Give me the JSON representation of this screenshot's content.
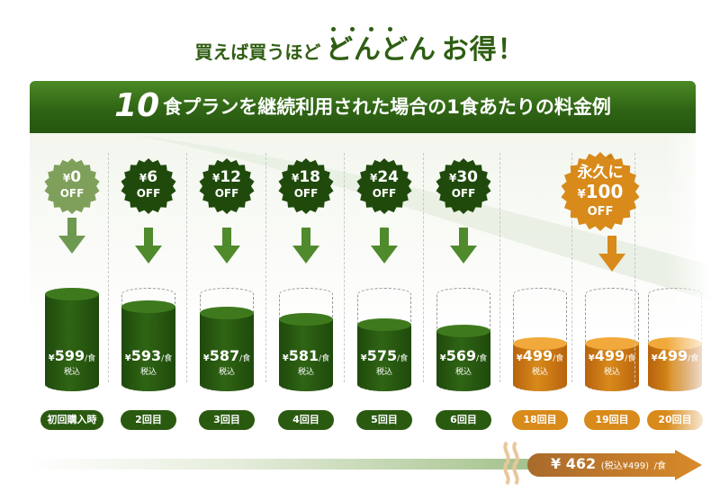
{
  "headline": {
    "part1": "買えば買うほど",
    "part2": "どんどん",
    "part3": "お得！"
  },
  "banner": {
    "num": "10",
    "text": "食プランを継続利用された場合の1食あたりの料金例"
  },
  "colors": {
    "green_dark": "#1f4a0c",
    "green_main": "#2f6414",
    "orange_main": "#d88a1a",
    "orange_dark": "#b8630e"
  },
  "columns": [
    {
      "discount": "0",
      "off": "OFF",
      "price": "599",
      "per": "/食",
      "tax": "税込",
      "label": "初回購入時",
      "fill": 1.0,
      "theme": "green"
    },
    {
      "discount": "6",
      "off": "OFF",
      "price": "593",
      "per": "/食",
      "tax": "税込",
      "label": "2回目",
      "fill": 0.88,
      "theme": "green"
    },
    {
      "discount": "12",
      "off": "OFF",
      "price": "587",
      "per": "/食",
      "tax": "税込",
      "label": "3回目",
      "fill": 0.82,
      "theme": "green"
    },
    {
      "discount": "18",
      "off": "OFF",
      "price": "581",
      "per": "/食",
      "tax": "税込",
      "label": "4回目",
      "fill": 0.76,
      "theme": "green"
    },
    {
      "discount": "24",
      "off": "OFF",
      "price": "575",
      "per": "/食",
      "tax": "税込",
      "label": "5回目",
      "fill": 0.7,
      "theme": "green"
    },
    {
      "discount": "30",
      "off": "OFF",
      "price": "569",
      "per": "/食",
      "tax": "税込",
      "label": "6回目",
      "fill": 0.64,
      "theme": "green"
    },
    {
      "discount": "",
      "off": "",
      "price": "499",
      "per": "/食",
      "tax": "税込",
      "label": "18回目",
      "fill": 0.52,
      "theme": "orange"
    },
    {
      "discount": "",
      "off": "",
      "price": "499",
      "per": "/食",
      "tax": "税込",
      "label": "19回目",
      "fill": 0.52,
      "theme": "orange"
    },
    {
      "discount": "",
      "off": "",
      "price": "499",
      "per": "/食",
      "tax": "",
      "label": "20回目",
      "fill": 0.52,
      "theme": "orange"
    }
  ],
  "special_badge": {
    "line1": "永久に",
    "amount": "100",
    "off": "OFF",
    "note": "※"
  },
  "currency": "¥",
  "bottom": {
    "price": "462",
    "note": "(税込¥499)",
    "per": "/食"
  }
}
